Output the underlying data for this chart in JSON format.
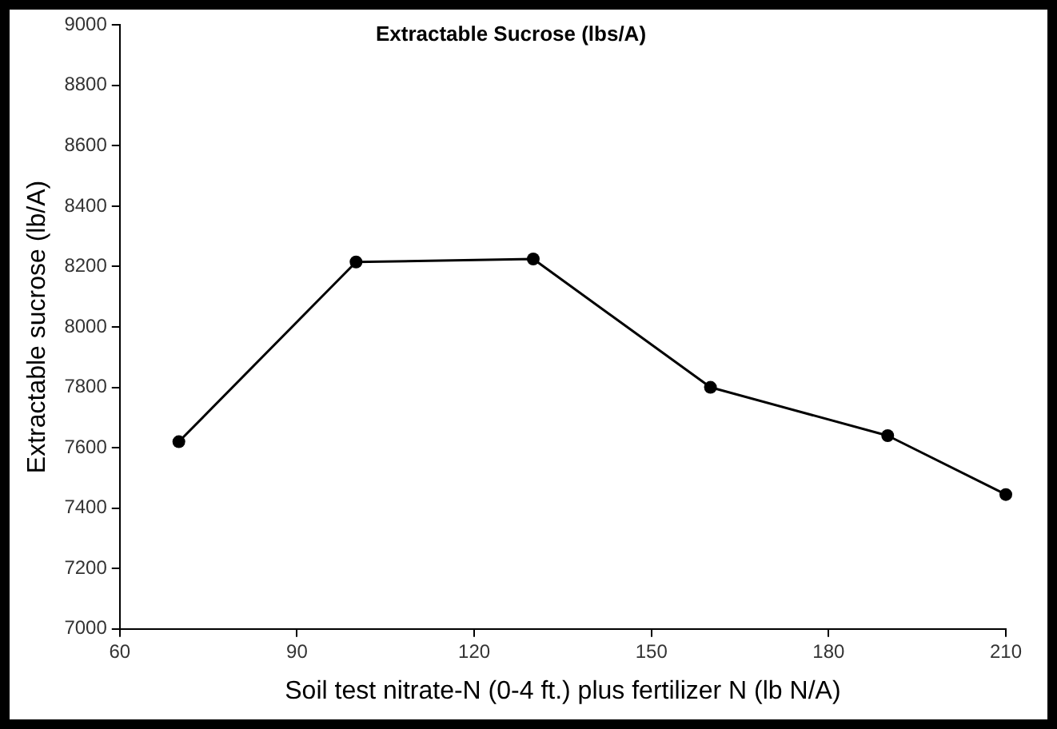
{
  "chart_data": {
    "type": "line",
    "title": "Extractable Sucrose (lbs/A)",
    "xlabel": "Soil test nitrate-N (0-4 ft.) plus fertilizer N (lb N/A)",
    "ylabel": "Extractable sucrose (lb/A)",
    "x": [
      70,
      100,
      130,
      160,
      190,
      210
    ],
    "series": [
      {
        "color": "#000000",
        "values": [
          7620,
          8215,
          8225,
          7800,
          7640,
          7445
        ]
      }
    ],
    "xlim": [
      60,
      210
    ],
    "xticks": [
      60,
      90,
      120,
      150,
      180,
      210
    ],
    "ylim": [
      7000,
      9000
    ],
    "yticks": [
      7000,
      7200,
      7400,
      7600,
      7800,
      8000,
      8200,
      8400,
      8600,
      8800,
      9000
    ],
    "grid": false,
    "legend": false,
    "marker": "circle",
    "line_style": "solid"
  }
}
